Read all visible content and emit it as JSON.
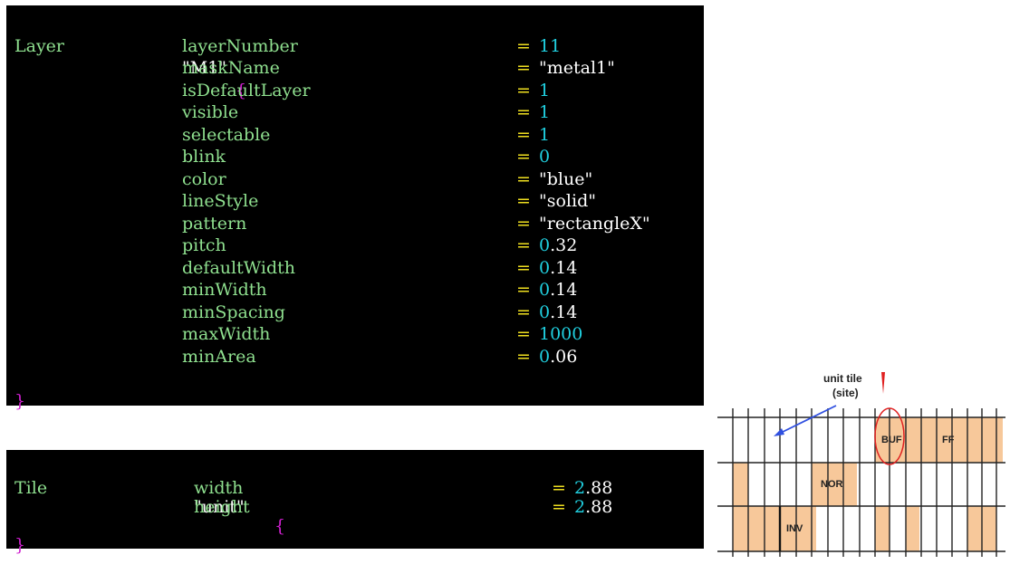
{
  "layer": {
    "keyword": "Layer",
    "name": "\"M1\"",
    "open_brace": "{",
    "close_brace": "}",
    "properties": [
      {
        "key": "layerNumber",
        "value": "11",
        "kind": "num"
      },
      {
        "key": "maskName",
        "value": "\"metal1\"",
        "kind": "str"
      },
      {
        "key": "isDefaultLayer",
        "value": "1",
        "kind": "num"
      },
      {
        "key": "visible",
        "value": "1",
        "kind": "num"
      },
      {
        "key": "selectable",
        "value": "1",
        "kind": "num"
      },
      {
        "key": "blink",
        "value": "0",
        "kind": "num"
      },
      {
        "key": "color",
        "value": "\"blue\"",
        "kind": "str"
      },
      {
        "key": "lineStyle",
        "value": "\"solid\"",
        "kind": "str"
      },
      {
        "key": "pattern",
        "value": "\"rectangleX\"",
        "kind": "str"
      },
      {
        "key": "pitch",
        "value": "0.32",
        "kind": "dec"
      },
      {
        "key": "defaultWidth",
        "value": "0.14",
        "kind": "dec"
      },
      {
        "key": "minWidth",
        "value": "0.14",
        "kind": "dec"
      },
      {
        "key": "minSpacing",
        "value": "0.14",
        "kind": "dec"
      },
      {
        "key": "maxWidth",
        "value": "1000",
        "kind": "num"
      },
      {
        "key": "minArea",
        "value": "0.06",
        "kind": "dec"
      }
    ]
  },
  "tile": {
    "keyword": "Tile",
    "name": "\"unit\"",
    "open_brace": "{",
    "close_brace": "}",
    "properties": [
      {
        "key": "width",
        "value": "2.88",
        "kind": "dec"
      },
      {
        "key": "height",
        "value": "2.88",
        "kind": "dec"
      }
    ]
  },
  "diagram": {
    "unit_tile_label_line1": "unit tile",
    "unit_tile_label_line2": "(site)",
    "cells": {
      "buf": "BUF",
      "ff": "FF",
      "nor": "NOR",
      "inv": "INV"
    },
    "colors": {
      "cell_fill": "#f7c89a",
      "arrow": "#3050e0",
      "highlight": "#e02020"
    }
  },
  "equals": "="
}
